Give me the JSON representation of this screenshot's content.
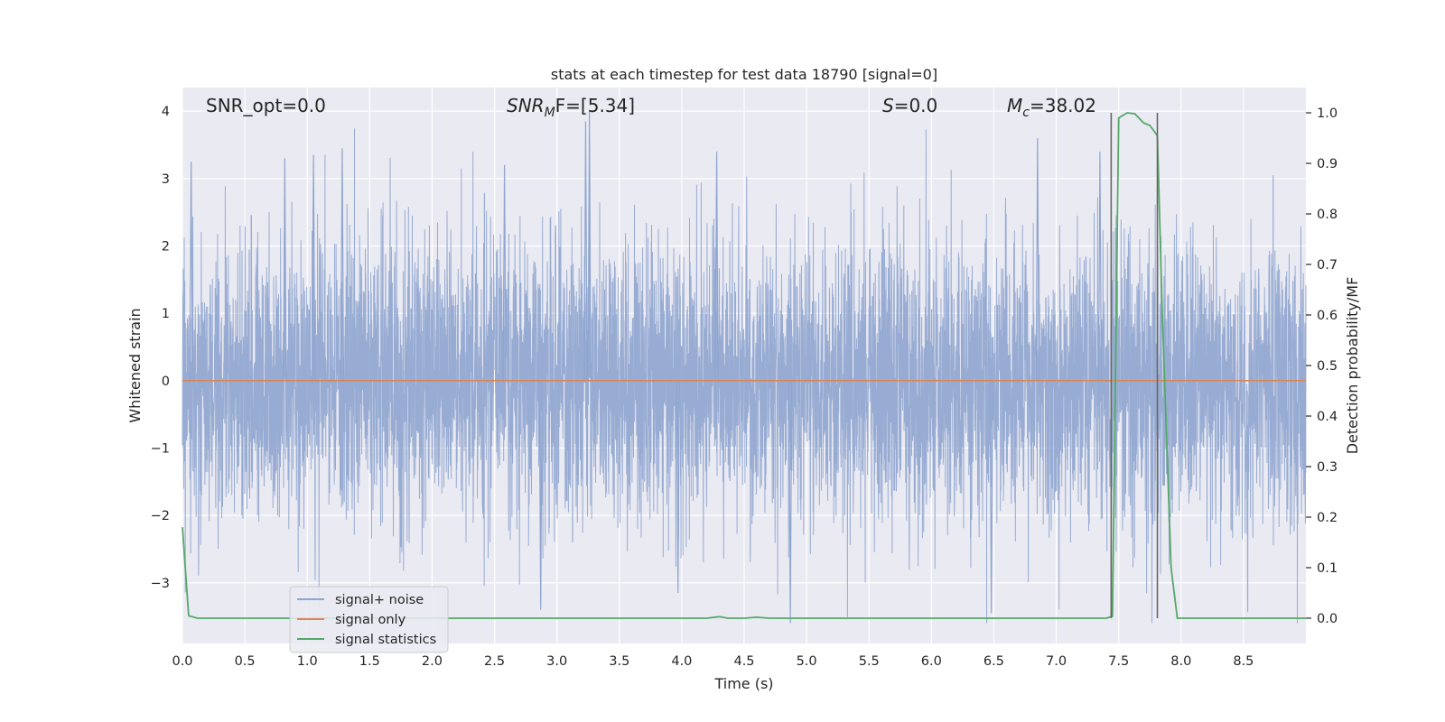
{
  "chart_data": {
    "type": "line",
    "title": "stats at each timestep for test data 18790 [signal=0]",
    "xlabel": "Time (s)",
    "ylabel": "Whitened strain",
    "y2label": "Detection probability/MF",
    "xlim": [
      0,
      9.0
    ],
    "ylim": [
      -3.9,
      4.35
    ],
    "y2lim": [
      -0.05,
      1.05
    ],
    "xticks": [
      0.0,
      0.5,
      1.0,
      1.5,
      2.0,
      2.5,
      3.0,
      3.5,
      4.0,
      4.5,
      5.0,
      5.5,
      6.0,
      6.5,
      7.0,
      7.5,
      8.0,
      8.5
    ],
    "xtick_labels": [
      "0.0",
      "0.5",
      "1.0",
      "1.5",
      "2.0",
      "2.5",
      "3.0",
      "3.5",
      "4.0",
      "4.5",
      "5.0",
      "5.5",
      "6.0",
      "6.5",
      "7.0",
      "7.5",
      "8.0",
      "8.5"
    ],
    "yticks": [
      -3,
      -2,
      -1,
      0,
      1,
      2,
      3,
      4
    ],
    "ytick_labels": [
      "−3",
      "−2",
      "−1",
      "0",
      "1",
      "2",
      "3",
      "4"
    ],
    "y2ticks": [
      0.0,
      0.1,
      0.2,
      0.3,
      0.4,
      0.5,
      0.6,
      0.7,
      0.8,
      0.9,
      1.0
    ],
    "y2tick_labels": [
      "0.0",
      "0.1",
      "0.2",
      "0.3",
      "0.4",
      "0.5",
      "0.6",
      "0.7",
      "0.8",
      "0.9",
      "1.0"
    ],
    "grid": true,
    "legend_position": "lower-left",
    "annotations": {
      "snr_opt": "SNR_opt=0.0",
      "snr_mf_main": "SNR",
      "snr_mf_sub": "M",
      "snr_mf_rest": "F=[5.34]",
      "s_main": "S",
      "s_rest": "=0.0",
      "mc_main": "M",
      "mc_sub": "c",
      "mc_rest": "=38.02"
    },
    "series": [
      {
        "name": "signal+ noise",
        "color": "#8fa5cf",
        "kind": "noise",
        "sample_rate": 2048,
        "approx_range": [
          -3.6,
          4.0
        ],
        "notable_peaks": [
          [
            0.07,
            3.25
          ],
          [
            0.82,
            3.3
          ],
          [
            1.05,
            3.35
          ],
          [
            1.28,
            3.45
          ],
          [
            2.58,
            3.2
          ],
          [
            3.23,
            3.85
          ],
          [
            3.26,
            4.0
          ],
          [
            4.28,
            3.4
          ],
          [
            6.85,
            3.6
          ],
          [
            7.35,
            3.4
          ],
          [
            4.87,
            -3.6
          ],
          [
            2.87,
            -3.4
          ],
          [
            3.97,
            -3.15
          ],
          [
            6.48,
            -3.45
          ]
        ]
      },
      {
        "name": "signal only",
        "color": "#dd8452",
        "kind": "line",
        "x": [
          0.0,
          9.0
        ],
        "y": [
          0.0,
          0.0
        ]
      },
      {
        "name": "signal statistics",
        "color": "#55a868",
        "kind": "line",
        "axis": "right",
        "x": [
          0.0,
          0.05,
          0.12,
          4.2,
          4.3,
          4.37,
          4.5,
          4.6,
          4.7,
          7.4,
          7.45,
          7.5,
          7.57,
          7.63,
          7.7,
          7.75,
          7.81,
          7.85,
          7.92,
          7.97,
          9.0
        ],
        "y": [
          0.18,
          0.005,
          0.0,
          0.0,
          0.003,
          0.0,
          0.0,
          0.002,
          0.0,
          0.0,
          0.004,
          0.99,
          1.0,
          0.998,
          0.98,
          0.975,
          0.955,
          0.6,
          0.1,
          0.0,
          0.0
        ]
      }
    ],
    "vlines": [
      7.44,
      7.81
    ]
  }
}
